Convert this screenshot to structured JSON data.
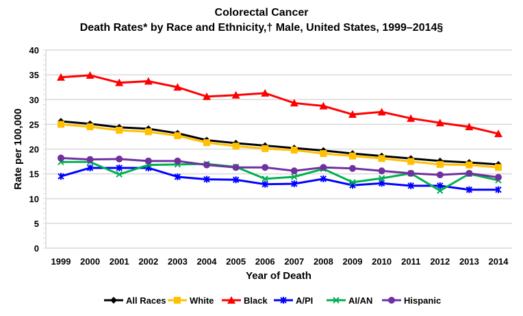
{
  "chart_data": {
    "type": "line",
    "title": "Colorectal Cancer",
    "subtitle": "Death Rates* by Race and Ethnicity,† Male, United States, 1999–2014§",
    "xlabel": "Year of Death",
    "ylabel": "Rate per 100,000",
    "ylim": [
      0,
      40
    ],
    "yticks": [
      0,
      5,
      10,
      15,
      20,
      25,
      30,
      35,
      40
    ],
    "grid": true,
    "legend": "bottom",
    "categories": [
      "1999",
      "2000",
      "2001",
      "2002",
      "2003",
      "2004",
      "2005",
      "2006",
      "2007",
      "2008",
      "2009",
      "2010",
      "2011",
      "2012",
      "2013",
      "2014"
    ],
    "series": [
      {
        "name": "All Races",
        "color": "#000000",
        "marker": "diamond",
        "values": [
          25.6,
          25.1,
          24.4,
          24.1,
          23.2,
          21.8,
          21.2,
          20.7,
          20.2,
          19.7,
          19.1,
          18.6,
          18.1,
          17.6,
          17.3,
          16.9
        ]
      },
      {
        "name": "White",
        "color": "#FFC000",
        "marker": "square",
        "values": [
          25.0,
          24.5,
          23.8,
          23.5,
          22.7,
          21.3,
          20.6,
          20.1,
          19.8,
          19.1,
          18.6,
          18.1,
          17.5,
          16.9,
          16.8,
          16.3
        ]
      },
      {
        "name": "Black",
        "color": "#FF0000",
        "marker": "triangle",
        "values": [
          34.5,
          34.9,
          33.4,
          33.7,
          32.5,
          30.6,
          30.9,
          31.3,
          29.3,
          28.7,
          27.0,
          27.5,
          26.2,
          25.3,
          24.5,
          23.1
        ]
      },
      {
        "name": "A/PI",
        "color": "#0000FF",
        "marker": "star",
        "values": [
          14.5,
          16.2,
          16.2,
          16.2,
          14.4,
          13.9,
          13.8,
          12.9,
          13.0,
          14.0,
          12.7,
          13.1,
          12.6,
          12.6,
          11.8,
          11.8
        ]
      },
      {
        "name": "AI/AN",
        "color": "#00B050",
        "marker": "x",
        "values": [
          17.4,
          17.4,
          14.9,
          16.8,
          16.9,
          17.0,
          16.4,
          14.0,
          14.4,
          16.0,
          13.3,
          14.1,
          15.1,
          11.6,
          15.0,
          13.7
        ]
      },
      {
        "name": "Hispanic",
        "color": "#7030A0",
        "marker": "circle",
        "values": [
          18.2,
          17.9,
          18.0,
          17.6,
          17.6,
          16.8,
          16.3,
          16.3,
          15.6,
          16.3,
          16.1,
          15.6,
          15.1,
          14.8,
          15.1,
          14.3
        ]
      }
    ]
  }
}
